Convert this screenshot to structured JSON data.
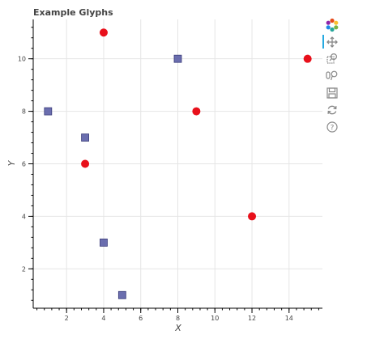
{
  "chart_data": {
    "type": "scatter",
    "title": "Example Glyphs",
    "xlabel": "X",
    "ylabel": "Y",
    "xlim": [
      0.2,
      15.8
    ],
    "ylim": [
      0.5,
      11.5
    ],
    "x_ticks": [
      2,
      4,
      6,
      8,
      10,
      12,
      14
    ],
    "y_ticks": [
      2,
      4,
      6,
      8,
      10
    ],
    "grid": true,
    "legend": "none",
    "series": [
      {
        "marker": "square",
        "color": "#5b5ea6",
        "points": [
          {
            "x": 1,
            "y": 8
          },
          {
            "x": 3,
            "y": 7
          },
          {
            "x": 4,
            "y": 3
          },
          {
            "x": 5,
            "y": 1
          },
          {
            "x": 8,
            "y": 10
          }
        ]
      },
      {
        "marker": "circle",
        "color": "#e8101b",
        "points": [
          {
            "x": 3,
            "y": 6
          },
          {
            "x": 4,
            "y": 11
          },
          {
            "x": 9,
            "y": 8
          },
          {
            "x": 12,
            "y": 4
          },
          {
            "x": 15,
            "y": 10
          }
        ]
      }
    ]
  },
  "toolbar": {
    "tools": [
      {
        "icon": "bokeh-logo-icon"
      },
      {
        "icon": "pan-icon",
        "active": true
      },
      {
        "icon": "box-zoom-icon"
      },
      {
        "icon": "wheel-zoom-icon"
      },
      {
        "icon": "save-icon"
      },
      {
        "icon": "reset-icon"
      },
      {
        "icon": "help-icon"
      }
    ]
  }
}
